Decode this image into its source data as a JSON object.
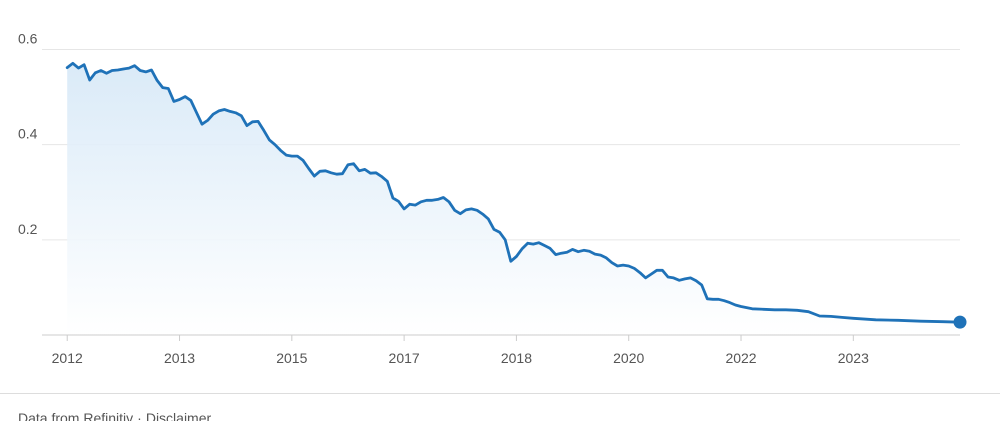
{
  "chart_data": {
    "type": "area",
    "y_ticks": [
      0.2,
      0.4,
      0.6
    ],
    "y_tick_labels": [
      "0.2",
      "0.4",
      "0.6"
    ],
    "ylim": [
      0,
      0.62
    ],
    "grid": true,
    "x_tick_labels": [
      "2012",
      "2013",
      "2015",
      "2017",
      "2018",
      "2020",
      "2022",
      "2023"
    ],
    "x_ticks": [
      2012.0,
      2013.0,
      2014.0,
      2015.0,
      2016.0,
      2017.0,
      2018.0,
      2019.0
    ],
    "xlim": [
      2011.9,
      2019.95
    ],
    "colors": {
      "line": "#1f72b8",
      "fill_top": "#d6e8f7",
      "fill_bottom": "#ffffff",
      "marker": "#1f72b8"
    },
    "series": [
      {
        "x": [
          2012.0,
          2012.05,
          2012.1,
          2012.15,
          2012.2,
          2012.25,
          2012.3,
          2012.35,
          2012.4,
          2012.45,
          2012.5,
          2012.55,
          2012.6,
          2012.65,
          2012.7,
          2012.75,
          2012.8,
          2012.85,
          2012.9,
          2012.95,
          2013.0,
          2013.05,
          2013.1,
          2013.15,
          2013.2,
          2013.25,
          2013.3,
          2013.35,
          2013.4,
          2013.45,
          2013.5,
          2013.55,
          2013.6,
          2013.65,
          2013.7,
          2013.75,
          2013.8,
          2013.85,
          2013.9,
          2013.95,
          2014.0,
          2014.05,
          2014.1,
          2014.15,
          2014.2,
          2014.25,
          2014.3,
          2014.35,
          2014.4,
          2014.45,
          2014.5,
          2014.55,
          2014.6,
          2014.65,
          2014.7,
          2014.75,
          2014.8,
          2014.85,
          2014.9,
          2014.95,
          2015.0,
          2015.05,
          2015.1,
          2015.15,
          2015.2,
          2015.25,
          2015.3,
          2015.35,
          2015.4,
          2015.45,
          2015.5,
          2015.55,
          2015.6,
          2015.65,
          2015.7,
          2015.75,
          2015.8,
          2015.85,
          2015.9,
          2015.95,
          2016.0,
          2016.05,
          2016.1,
          2016.15,
          2016.2,
          2016.25,
          2016.3,
          2016.35,
          2016.4,
          2016.45,
          2016.5,
          2016.55,
          2016.6,
          2016.65,
          2016.7,
          2016.75,
          2016.8,
          2016.85,
          2016.9,
          2016.95,
          2017.0,
          2017.05,
          2017.1,
          2017.15,
          2017.2,
          2017.25,
          2017.3,
          2017.35,
          2017.4,
          2017.45,
          2017.5,
          2017.55,
          2017.6,
          2017.65,
          2017.7,
          2017.75,
          2017.8,
          2017.85,
          2017.9,
          2017.95,
          2018.0,
          2018.1,
          2018.2,
          2018.3,
          2018.4,
          2018.5,
          2018.6,
          2018.7,
          2018.8,
          2018.9,
          2019.0,
          2019.2,
          2019.4,
          2019.6,
          2019.8,
          2019.95
        ],
        "y": [
          0.562,
          0.571,
          0.561,
          0.568,
          0.536,
          0.551,
          0.556,
          0.55,
          0.556,
          0.557,
          0.559,
          0.561,
          0.566,
          0.556,
          0.553,
          0.557,
          0.535,
          0.52,
          0.518,
          0.491,
          0.495,
          0.501,
          0.493,
          0.468,
          0.443,
          0.451,
          0.464,
          0.471,
          0.474,
          0.47,
          0.467,
          0.461,
          0.44,
          0.448,
          0.449,
          0.43,
          0.41,
          0.4,
          0.388,
          0.378,
          0.376,
          0.376,
          0.367,
          0.35,
          0.334,
          0.344,
          0.345,
          0.341,
          0.338,
          0.339,
          0.358,
          0.36,
          0.345,
          0.348,
          0.34,
          0.341,
          0.333,
          0.323,
          0.288,
          0.281,
          0.265,
          0.275,
          0.273,
          0.28,
          0.283,
          0.283,
          0.285,
          0.289,
          0.28,
          0.262,
          0.255,
          0.263,
          0.265,
          0.262,
          0.254,
          0.244,
          0.222,
          0.216,
          0.2,
          0.155,
          0.165,
          0.181,
          0.193,
          0.191,
          0.194,
          0.188,
          0.182,
          0.169,
          0.172,
          0.174,
          0.18,
          0.175,
          0.178,
          0.176,
          0.17,
          0.168,
          0.162,
          0.152,
          0.145,
          0.147,
          0.145,
          0.14,
          0.131,
          0.12,
          0.128,
          0.136,
          0.136,
          0.122,
          0.12,
          0.115,
          0.118,
          0.12,
          0.114,
          0.105,
          0.076,
          0.075,
          0.075,
          0.072,
          0.068,
          0.063,
          0.06,
          0.055,
          0.054,
          0.053,
          0.053,
          0.052,
          0.049,
          0.04,
          0.039,
          0.037,
          0.035,
          0.032,
          0.031,
          0.029,
          0.028,
          0.027
        ]
      }
    ],
    "end_marker": true
  },
  "footer": {
    "source_text": "Data from Refinitiv",
    "separator": "·",
    "disclaimer": "Disclaimer"
  }
}
